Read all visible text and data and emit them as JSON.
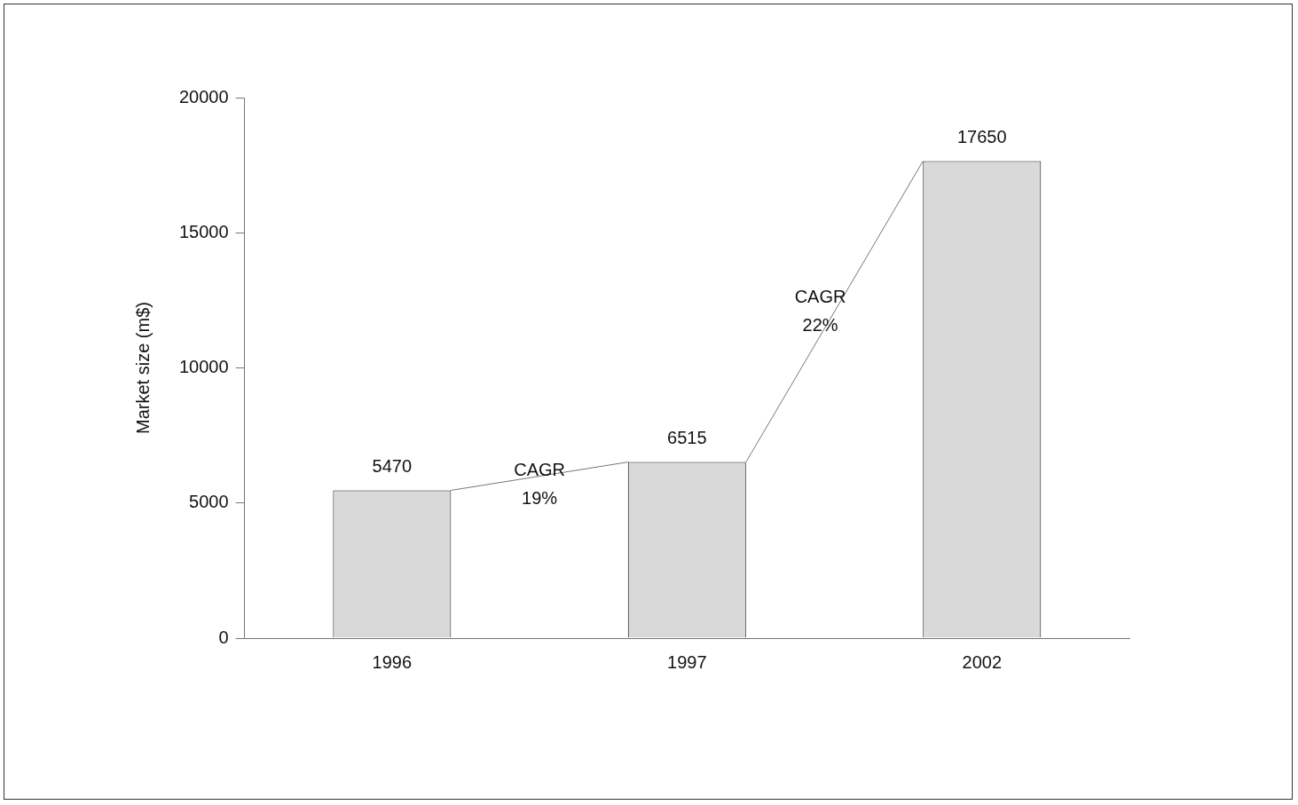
{
  "chart_data": {
    "type": "bar",
    "categories": [
      "1996",
      "1997",
      "2002"
    ],
    "values": [
      5470,
      6515,
      17650
    ],
    "color": "#d9d9d9",
    "ylabel": "Market size (m$)",
    "ylim": [
      0,
      20000
    ],
    "yticks": [
      0,
      5000,
      10000,
      15000,
      20000
    ],
    "grid": false,
    "legend": false,
    "data_labels": true,
    "annotations": [
      "CAGR 19%",
      "CAGR 22%"
    ]
  }
}
